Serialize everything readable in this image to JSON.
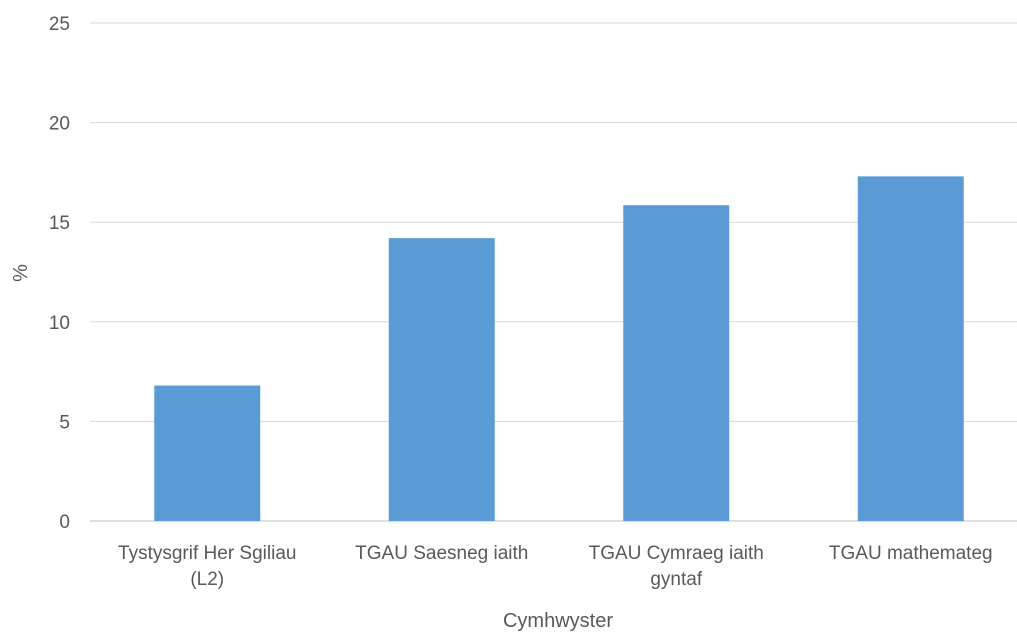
{
  "chart_data": {
    "type": "bar",
    "title": "",
    "xlabel": "Cymhwyster",
    "ylabel": "%",
    "ylim": [
      0,
      25
    ],
    "yticks": [
      "0",
      "5",
      "10",
      "15",
      "20",
      "25"
    ],
    "grid": true,
    "categories": [
      [
        "Tystysgrif Her Sgiliau",
        "(L2)"
      ],
      [
        "TGAU Saesneg iaith"
      ],
      [
        "TGAU Cymraeg iaith",
        "gyntaf"
      ],
      [
        "TGAU mathemateg"
      ]
    ],
    "values": [
      6.8,
      14.2,
      15.85,
      17.3
    ],
    "bar_color": "#5b9bd5"
  }
}
